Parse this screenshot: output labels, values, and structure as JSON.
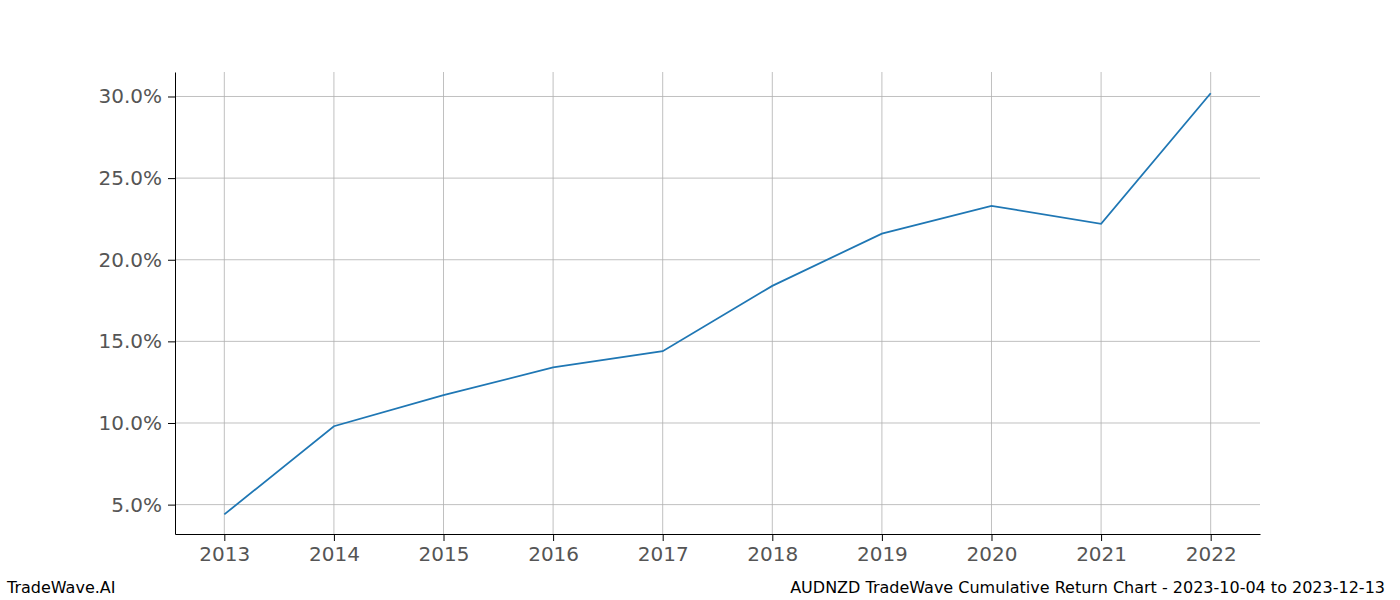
{
  "chart_data": {
    "type": "line",
    "x": [
      2013,
      2014,
      2015,
      2016,
      2017,
      2018,
      2019,
      2020,
      2021,
      2022
    ],
    "values": [
      4.4,
      9.8,
      11.7,
      13.4,
      14.4,
      18.4,
      21.6,
      23.3,
      22.2,
      30.2
    ],
    "color": "#1f77b4",
    "xlim": [
      2012.55,
      2022.45
    ],
    "xticks": [
      2013,
      2014,
      2015,
      2016,
      2017,
      2018,
      2019,
      2020,
      2021,
      2022
    ],
    "ylim": [
      3.2,
      31.5
    ],
    "yticks": [
      {
        "value": 5,
        "label": "5.0%"
      },
      {
        "value": 10,
        "label": "10.0%"
      },
      {
        "value": 15,
        "label": "15.0%"
      },
      {
        "value": 20,
        "label": "20.0%"
      },
      {
        "value": 25,
        "label": "25.0%"
      },
      {
        "value": 30,
        "label": "30.0%"
      }
    ],
    "grid": true,
    "annotations": [
      "TradeWave.AI",
      "AUDNZD TradeWave Cumulative Return Chart - 2023-10-04 to 2023-12-13"
    ]
  }
}
